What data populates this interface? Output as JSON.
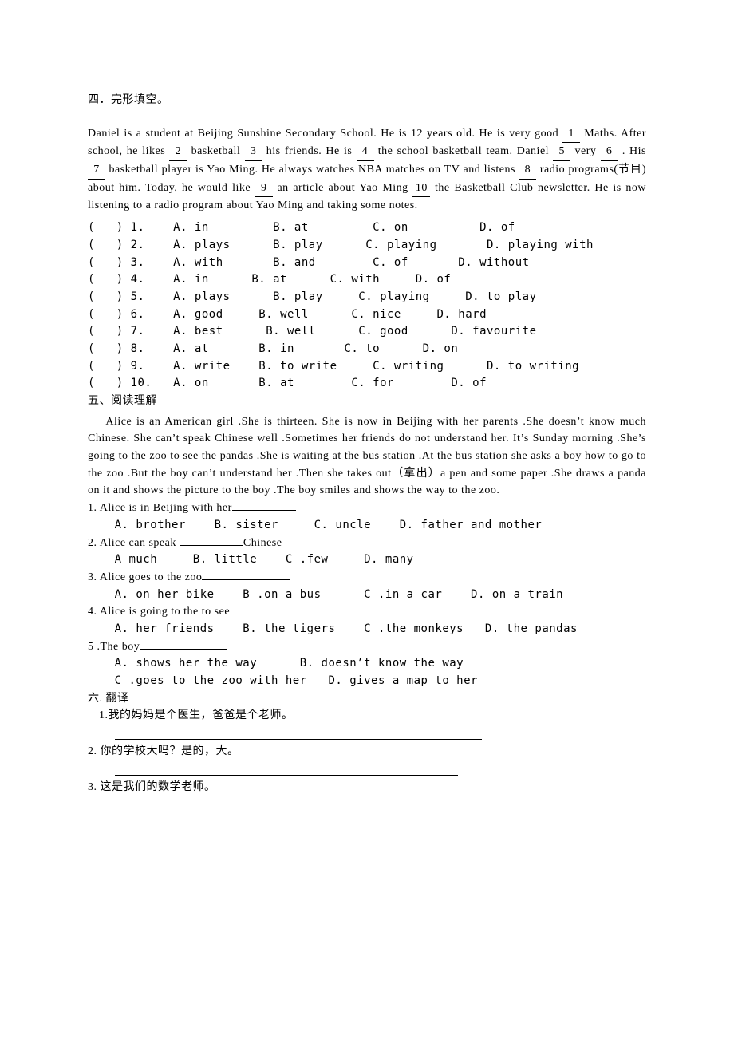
{
  "colors": {
    "text": "#000000",
    "background": "#ffffff",
    "rule": "#000000"
  },
  "typography": {
    "font_family": "SimSun",
    "font_size_pt": 10.5,
    "line_height": 1.55
  },
  "section4": {
    "title": "四．完形填空。",
    "passage": {
      "s1a": "Daniel is a student at Beijing Sunshine Secondary School. He is 12 years old. He is very good ",
      "b1": "1",
      "s1b": " Maths. After school, he likes ",
      "b2": "2",
      "s1c": "  basketball ",
      "b3": "3",
      "s1d": " his friends. He is ",
      "b4": "4",
      "s1e": " the school basketball team. Daniel ",
      "b5": "5",
      "s1f": " very ",
      "b6": "6",
      "s1g": " . His ",
      "b7": "7",
      "s1h": " basketball player is Yao Ming. He always watches NBA matches on TV and listens ",
      "b8": "8",
      "s1i": " radio programs(节目) about him. Today, he would like ",
      "b9": "9",
      "s1j": " an article about Yao Ming ",
      "b10": "10",
      "s1k": " the Basketball Club newsletter. He is now listening to a radio program about Yao Ming and taking some notes."
    },
    "choices": [
      "(   ) 1.    A. in         B. at         C. on          D. of",
      "(   ) 2.    A. plays      B. play      C. playing       D. playing with",
      "(   ) 3.    A. with       B. and        C. of       D. without",
      "(   ) 4.    A. in      B. at      C. with     D. of",
      "(   ) 5.    A. plays      B. play     C. playing     D. to play",
      "(   ) 6.    A. good     B. well      C. nice     D. hard",
      "(   ) 7.    A. best      B. well      C. good      D. favourite",
      "(   ) 8.    A. at       B. in       C. to      D. on",
      "(   ) 9.    A. write    B. to write     C. writing      D. to writing",
      "(   ) 10.   A. on       B. at        C. for        D. of"
    ]
  },
  "section5": {
    "title": "五、阅读理解",
    "passage": "Alice is an American girl .She is thirteen. She is now in Beijing with her parents .She doesn’t know much Chinese. She can’t speak Chinese well .Sometimes her friends do not understand her. It’s Sunday morning .She’s going to the zoo to see the pandas .She is waiting at the bus station .At the bus station she asks a boy how to go to the zoo .But the boy can’t understand her .Then she takes out（拿出）a pen and some paper .She draws a panda on it and shows the picture to the boy .The boy smiles and shows the way to the zoo.",
    "questions": [
      {
        "stem": "1.  Alice is in Beijing with her",
        "opts": "A. brother    B. sister     C. uncle    D. father and mother"
      },
      {
        "stem_a": "2. Alice can speak ",
        "stem_b": "Chinese",
        "opts": "A much     B. little    C .few     D. many"
      },
      {
        "stem": "3.  Alice goes to the zoo",
        "opts": "A. on her bike    B .on a bus      C .in a car    D. on a train"
      },
      {
        "stem": "4. Alice is going to the to see",
        "opts": "A. her friends    B. the tigers    C .the monkeys   D. the pandas"
      },
      {
        "stem": "5 .The boy",
        "opts_a": "A. shows her the way      B. doesn’t know the way",
        "opts_b": "C .goes to the zoo with her   D. gives a map to her"
      }
    ]
  },
  "section6": {
    "title": "六. 翻译",
    "items": [
      "1.我的妈妈是个医生，爸爸是个老师。",
      "2.  你的学校大吗？是的，大。",
      "3.   这是我们的数学老师。"
    ]
  }
}
